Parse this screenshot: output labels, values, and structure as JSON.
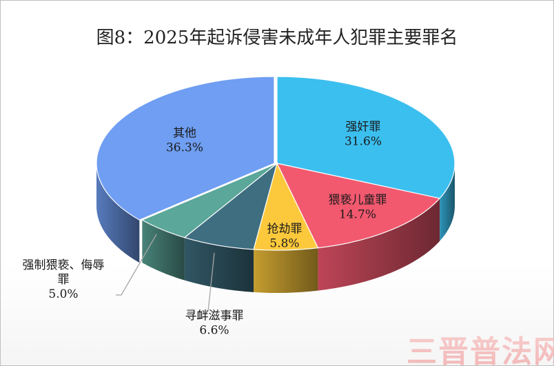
{
  "chart_data": {
    "type": "pie",
    "title": "图8：2025年起诉侵害未成年人犯罪主要罪名",
    "style": "3d-exploded",
    "slices": [
      {
        "name": "强奸罪",
        "value": 31.6,
        "label_value": "31.6%",
        "color": "#3bbfef"
      },
      {
        "name": "猥亵儿童罪",
        "value": 14.7,
        "label_value": "14.7%",
        "color": "#f2596f"
      },
      {
        "name": "抢劫罪",
        "value": 5.8,
        "label_value": "5.8%",
        "color": "#fdc93c"
      },
      {
        "name": "寻衅滋事罪",
        "value": 6.6,
        "label_value": "6.6%",
        "color": "#3e6e80"
      },
      {
        "name": "强制猥亵、侮辱罪",
        "value": 5.0,
        "label_value": "5.0%",
        "color": "#5ba79a"
      },
      {
        "name": "其他",
        "value": 36.3,
        "label_value": "36.3%",
        "color": "#6f9ef2"
      }
    ]
  },
  "labels": {
    "强奸罪": [
      "强奸罪",
      "31.6%"
    ],
    "猥亵儿童罪": [
      "猥亵儿童罪",
      "14.7%"
    ],
    "抢劫罪": [
      "抢劫罪",
      "5.8%"
    ],
    "寻衅滋事罪": [
      "寻衅滋事罪",
      "6.6%"
    ],
    "强制猥亵、侮辱罪": [
      "强制猥亵、侮辱",
      "罪",
      "5.0%"
    ],
    "其他": [
      "其他",
      "36.3%"
    ]
  },
  "watermark": "三晋普法网"
}
